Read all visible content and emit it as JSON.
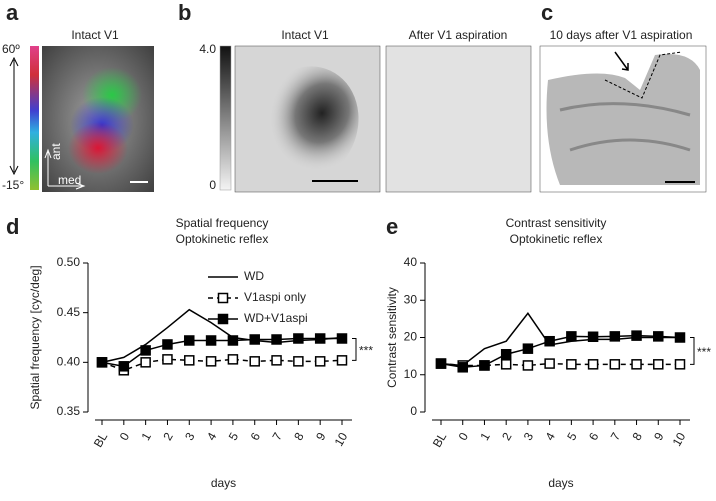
{
  "figure": {
    "panel_letters": [
      "a",
      "b",
      "c",
      "d",
      "e"
    ],
    "a": {
      "title": "Intact V1",
      "colorbar_top": "60º",
      "colorbar_bottom": "-15°",
      "axis_ant": "ant",
      "axis_med": "med"
    },
    "b": {
      "titles": [
        "Intact V1",
        "After V1 aspiration"
      ],
      "scale_top": "4.0",
      "scale_bottom": "0"
    },
    "c": {
      "title": "10 days after V1 aspiration"
    }
  },
  "chart_data": [
    {
      "type": "line",
      "title": "Spatial frequency",
      "subtitle": "Optokinetic reflex",
      "x_label": "days",
      "y_label": "Spatial frequency [cyc/deg]",
      "categories": [
        "BL",
        "0",
        "1",
        "2",
        "3",
        "4",
        "5",
        "6",
        "7",
        "8",
        "9",
        "10"
      ],
      "ylim": [
        0.35,
        0.5
      ],
      "yticks": [
        0.35,
        {
          "value": 0.4,
          "label": "0.40"
        },
        0.45,
        {
          "value": 0.5,
          "label": "0.50"
        }
      ],
      "legend": true,
      "annotation": "***",
      "series": [
        {
          "name": "WD",
          "color": "#000000",
          "marker": "none",
          "dashed": false,
          "values": [
            0.4,
            0.405,
            0.418,
            0.435,
            0.453,
            0.44,
            0.425,
            0.422,
            0.42,
            0.422,
            0.423,
            0.425
          ]
        },
        {
          "name": "V1aspi only",
          "color": "#000000",
          "marker": "open",
          "dashed": true,
          "values": [
            0.4,
            0.392,
            0.4,
            0.403,
            0.402,
            0.401,
            0.403,
            0.401,
            0.402,
            0.401,
            0.401,
            0.402
          ]
        },
        {
          "name": "WD+V1aspi",
          "color": "#000000",
          "marker": "filled",
          "dashed": false,
          "values": [
            0.4,
            0.396,
            0.412,
            0.418,
            0.422,
            0.422,
            0.422,
            0.423,
            0.423,
            0.424,
            0.424,
            0.424
          ]
        }
      ]
    },
    {
      "type": "line",
      "title": "Contrast sensitivity",
      "subtitle": "Optokinetic reflex",
      "x_label": "days",
      "y_label": "Contrast sensitivity",
      "categories": [
        "BL",
        "0",
        "1",
        "2",
        "3",
        "4",
        "5",
        "6",
        "7",
        "8",
        "9",
        "10"
      ],
      "ylim": [
        0,
        40
      ],
      "yticks": [
        0,
        10,
        20,
        30,
        40
      ],
      "legend": false,
      "annotation": "***",
      "series": [
        {
          "color": "#000000",
          "marker": "none",
          "dashed": false,
          "values": [
            13,
            12.5,
            17,
            19,
            26.5,
            18,
            19,
            19.5,
            19.5,
            20,
            20,
            20
          ]
        },
        {
          "color": "#000000",
          "marker": "open",
          "dashed": true,
          "values": [
            13,
            12.5,
            12.5,
            12.8,
            12.5,
            13,
            12.8,
            12.8,
            12.8,
            12.8,
            12.8,
            12.8
          ]
        },
        {
          "color": "#000000",
          "marker": "filled",
          "dashed": false,
          "values": [
            13,
            12,
            12.5,
            15.5,
            17,
            19,
            20.3,
            20.2,
            20.3,
            20.5,
            20.3,
            20
          ]
        }
      ]
    }
  ]
}
